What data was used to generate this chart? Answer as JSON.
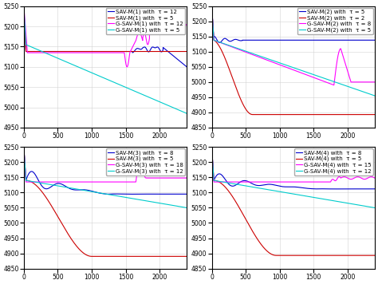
{
  "figsize": [
    4.74,
    3.56
  ],
  "dpi": 100,
  "subplots": [
    {
      "ylim": [
        4950,
        5250
      ],
      "yticks": [
        4950,
        5000,
        5050,
        5100,
        5150,
        5200,
        5250
      ],
      "xlim": [
        0,
        2400
      ],
      "xticks": [
        0,
        500,
        1000,
        1500,
        2000
      ],
      "series": [
        {
          "label": "SAV-M(1) with  τ = 12",
          "color": "#0000CD",
          "lw": 0.8
        },
        {
          "label": "SAV-M(1) with  τ = 5",
          "color": "#CC0000",
          "lw": 0.8
        },
        {
          "label": "G-SAV-M(1) with  τ = 12",
          "color": "#FF00FF",
          "lw": 0.8
        },
        {
          "label": "G-SAV-M(1) with  τ = 5",
          "color": "#00CCCC",
          "lw": 0.8
        }
      ]
    },
    {
      "ylim": [
        4850,
        5250
      ],
      "yticks": [
        4850,
        4900,
        4950,
        5000,
        5050,
        5100,
        5150,
        5200,
        5250
      ],
      "xlim": [
        0,
        2400
      ],
      "xticks": [
        0,
        500,
        1000,
        1500,
        2000
      ],
      "series": [
        {
          "label": "SAV-M(2) with  τ = 5",
          "color": "#0000CD",
          "lw": 0.8
        },
        {
          "label": "SAV-M(2) with  τ = 2",
          "color": "#CC0000",
          "lw": 0.8
        },
        {
          "label": "G-SAV-M(2) with  τ = 8",
          "color": "#FF00FF",
          "lw": 0.8
        },
        {
          "label": "G-SAV-M(2) with  τ = 5",
          "color": "#00CCCC",
          "lw": 0.8
        }
      ]
    },
    {
      "ylim": [
        4850,
        5250
      ],
      "yticks": [
        4850,
        4900,
        4950,
        5000,
        5050,
        5100,
        5150,
        5200,
        5250
      ],
      "xlim": [
        0,
        2400
      ],
      "xticks": [
        0,
        500,
        1000,
        1500,
        2000
      ],
      "series": [
        {
          "label": "SAV-M(3) with  τ = 8",
          "color": "#0000CD",
          "lw": 0.8
        },
        {
          "label": "SAV-M(3) with  τ = 5",
          "color": "#CC0000",
          "lw": 0.8
        },
        {
          "label": "G-SAV-M(3) with  τ = 18",
          "color": "#FF00FF",
          "lw": 0.8
        },
        {
          "label": "G-SAV-M(3) with  τ = 12",
          "color": "#00CCCC",
          "lw": 0.8
        }
      ]
    },
    {
      "ylim": [
        4850,
        5250
      ],
      "yticks": [
        4850,
        4900,
        4950,
        5000,
        5050,
        5100,
        5150,
        5200,
        5250
      ],
      "xlim": [
        0,
        2400
      ],
      "xticks": [
        0,
        500,
        1000,
        1500,
        2000
      ],
      "series": [
        {
          "label": "SAV-M(4) with  τ = 8",
          "color": "#0000CD",
          "lw": 0.8
        },
        {
          "label": "SAV-M(4) with  τ = 5",
          "color": "#CC0000",
          "lw": 0.8
        },
        {
          "label": "G-SAV-M(4) with  τ = 15",
          "color": "#FF00FF",
          "lw": 0.8
        },
        {
          "label": "G-SAV-M(4) with  τ = 12",
          "color": "#00CCCC",
          "lw": 0.8
        }
      ]
    }
  ],
  "legend_fontsize": 5.0,
  "tick_fontsize": 5.5,
  "bg_color": "#FFFFFF",
  "grid_color": "#D3D3D3"
}
